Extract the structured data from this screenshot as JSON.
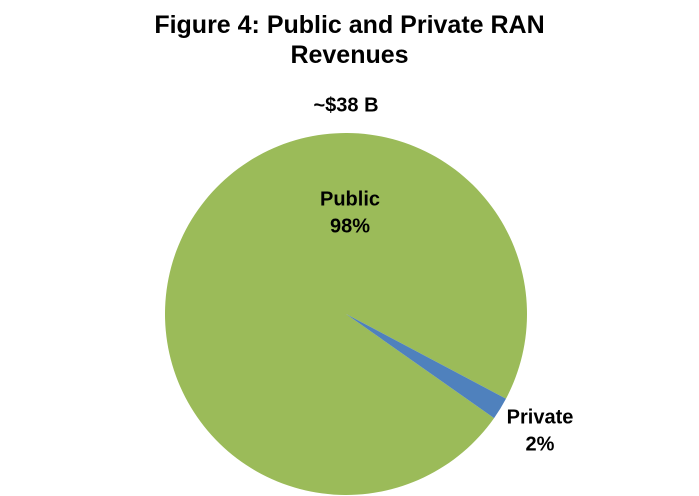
{
  "chart_data": {
    "type": "pie",
    "title": "Figure 4: Public and Private RAN Revenues",
    "subtitle": "~$38 B",
    "categories": [
      "Public",
      "Private"
    ],
    "values": [
      98,
      2
    ],
    "value_labels": [
      "98%",
      "2%"
    ],
    "colors": [
      "#9bbb59",
      "#4f81bd"
    ]
  }
}
